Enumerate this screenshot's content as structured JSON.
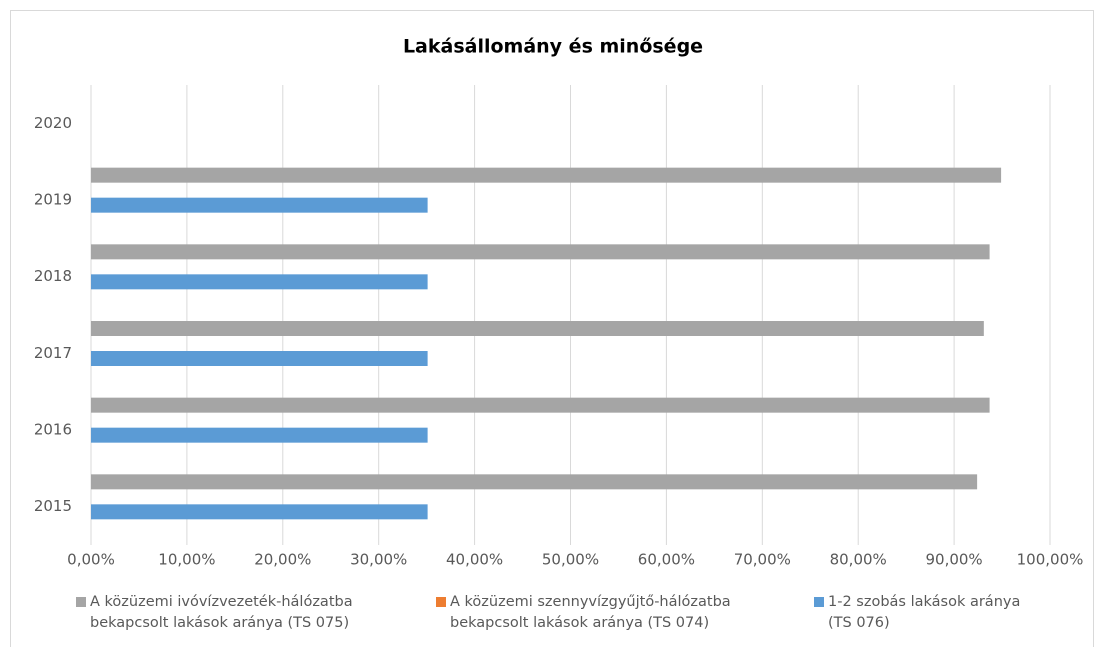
{
  "chart_data": {
    "type": "bar",
    "orientation": "horizontal",
    "title": "Lakásállomány és minősége",
    "categories": [
      "2015",
      "2016",
      "2017",
      "2018",
      "2019",
      "2020"
    ],
    "series": [
      {
        "name": "A közüzemi ivóvízvezeték-hálózatba bekapcsolt lakások aránya (TS 075)",
        "color": "#a5a5a5",
        "values": [
          92.4,
          93.7,
          93.1,
          93.7,
          94.9,
          null
        ]
      },
      {
        "name": "A közüzemi szennyvízgyűjtő-hálózatba bekapcsolt lakások aránya (TS 074)",
        "color": "#ed7d31",
        "values": [
          null,
          null,
          null,
          null,
          null,
          null
        ]
      },
      {
        "name": "1-2 szobás lakások aránya (TS 076)",
        "color": "#5b9bd5",
        "values": [
          35.1,
          35.1,
          35.1,
          35.1,
          35.1,
          null
        ]
      }
    ],
    "xlim": [
      0,
      100
    ],
    "xticks": [
      {
        "value": 0,
        "label": "0,00%"
      },
      {
        "value": 10,
        "label": "10,00%"
      },
      {
        "value": 20,
        "label": "20,00%"
      },
      {
        "value": 30,
        "label": "30,00%"
      },
      {
        "value": 40,
        "label": "40,00%"
      },
      {
        "value": 50,
        "label": "50,00%"
      },
      {
        "value": 60,
        "label": "60,00%"
      },
      {
        "value": 70,
        "label": "70,00%"
      },
      {
        "value": 80,
        "label": "80,00%"
      },
      {
        "value": 90,
        "label": "90,00%"
      },
      {
        "value": 100,
        "label": "100,00%"
      }
    ],
    "grid": true,
    "legend": "bottom"
  }
}
